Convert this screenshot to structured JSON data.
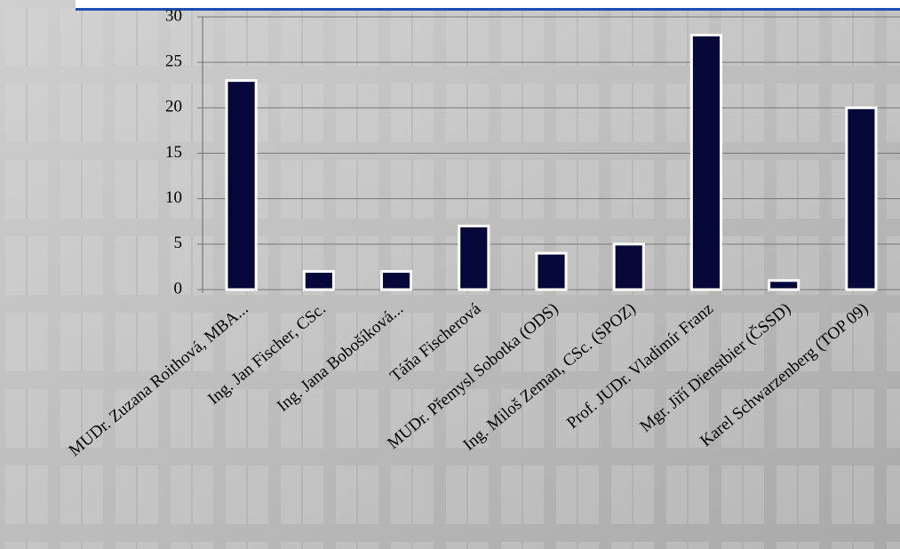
{
  "chart_data": {
    "type": "bar",
    "categories": [
      "MUDr. Zuzana Roithová, MBA...",
      "Ing. Jan Fischer, CSc.",
      "Ing. Jana Bobošíková...",
      "Táňa Fischerová",
      "MUDr. Přemysl Sobotka (ODS)",
      "Ing. Miloš Zeman, CSc. (SPOZ)",
      "Prof. JUDr. Vladimír Franz",
      "Mgr. Jiří Dienstbier (ČSSD)",
      "Karel Schwarzenberg (TOP 09)"
    ],
    "values": [
      23,
      2,
      2,
      7,
      4,
      5,
      28,
      1,
      20
    ],
    "color": "#07083a",
    "ylim": [
      0,
      30
    ],
    "yticks": [
      0,
      5,
      10,
      15,
      20,
      25,
      30
    ],
    "grid": true
  }
}
